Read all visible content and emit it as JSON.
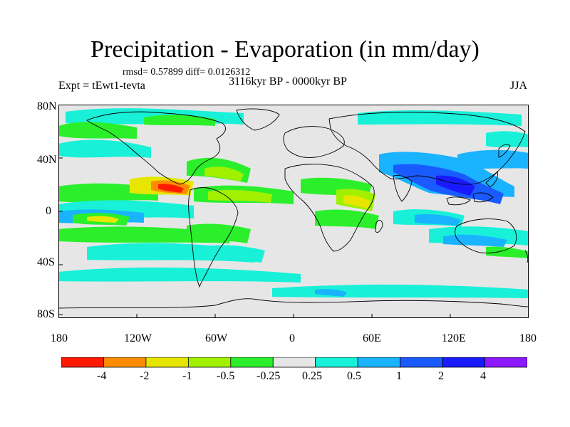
{
  "title": "Precipitation - Evaporation (in mm/day)",
  "stats": "rmsd= 0.57899  diff= 0.0126312",
  "experiment": "Expt = tEwt1-tevta",
  "period": "3116kyr BP - 0000kyr BP",
  "season": "JJA",
  "lat_labels": [
    "80N",
    "40N",
    "0",
    "40S",
    "80S"
  ],
  "lon_labels": [
    "180",
    "120W",
    "60W",
    "0",
    "60E",
    "120E",
    "180"
  ],
  "colorbar": {
    "labels": [
      "-4",
      "-2",
      "-1",
      "-0.5",
      "-0.25",
      "0.25",
      "0.5",
      "1",
      "2",
      "4"
    ],
    "colors": [
      "#ff1a00",
      "#ff8c00",
      "#e6e600",
      "#a0f000",
      "#2bef2b",
      "#e6e6e6",
      "#18f0d8",
      "#19b3ff",
      "#1a5bff",
      "#1a1aff",
      "#8c19ff"
    ]
  },
  "colors": {
    "land_outline": "#000000",
    "background": "#e6e6e6"
  }
}
